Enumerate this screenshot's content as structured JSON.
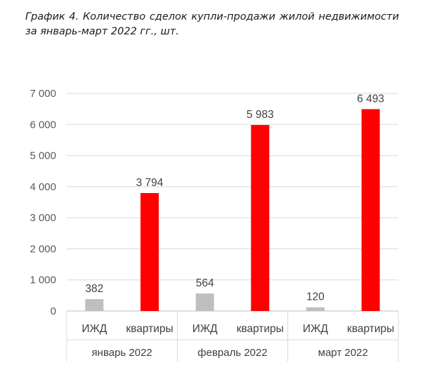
{
  "caption": "График 4. Количество сделок купли-продажи жилой недвижимости за январь-март 2022 гг., шт.",
  "chart_data": {
    "type": "bar",
    "groups": [
      {
        "name": "январь 2022",
        "items": [
          {
            "category": "ИЖД",
            "value": 382,
            "label": "382"
          },
          {
            "category": "квартиры",
            "value": 3794,
            "label": "3 794"
          }
        ]
      },
      {
        "name": "февраль 2022",
        "items": [
          {
            "category": "ИЖД",
            "value": 564,
            "label": "564"
          },
          {
            "category": "квартиры",
            "value": 5983,
            "label": "5 983"
          }
        ]
      },
      {
        "name": "март 2022",
        "items": [
          {
            "category": "ИЖД",
            "value": 120,
            "label": "120"
          },
          {
            "category": "квартиры",
            "value": 6493,
            "label": "6 493"
          }
        ]
      }
    ],
    "yticks": [
      {
        "value": 0,
        "label": "0"
      },
      {
        "value": 1000,
        "label": "1 000"
      },
      {
        "value": 2000,
        "label": "2 000"
      },
      {
        "value": 3000,
        "label": "3 000"
      },
      {
        "value": 4000,
        "label": "4 000"
      },
      {
        "value": 5000,
        "label": "5 000"
      },
      {
        "value": 6000,
        "label": "6 000"
      },
      {
        "value": 7000,
        "label": "7 000"
      }
    ],
    "ylim": [
      0,
      7000
    ],
    "grid": true,
    "colors": {
      "ИЖД": "#bfbfbf",
      "квартиры": "#ff0000"
    },
    "xlabel": "",
    "ylabel": ""
  }
}
